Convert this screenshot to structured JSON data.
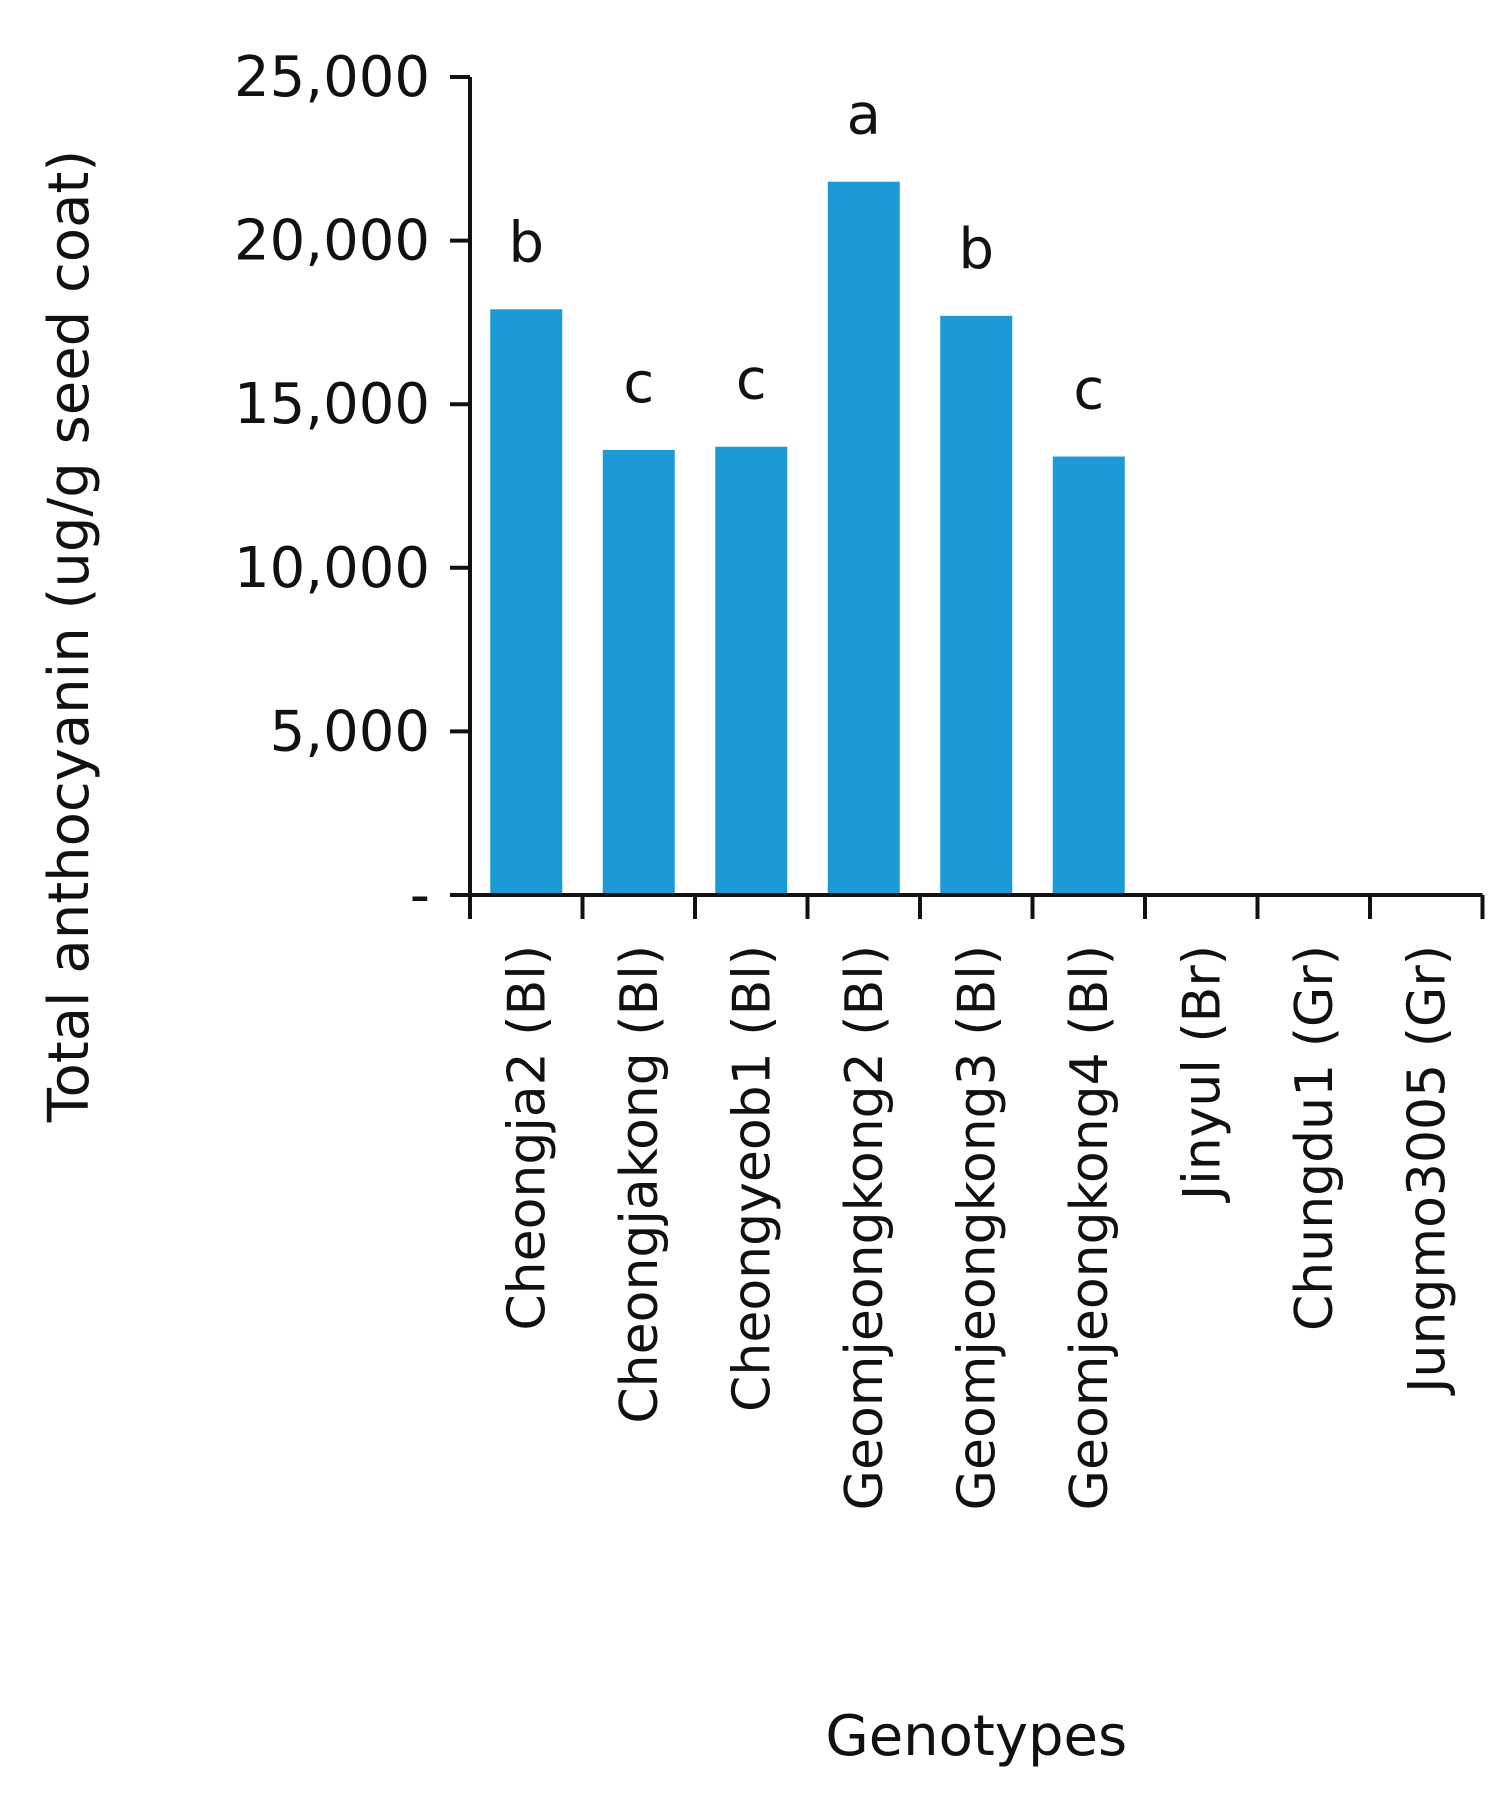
{
  "chart_data": {
    "type": "bar",
    "title": "",
    "xlabel": "Genotypes",
    "ylabel": "Total anthocyanin (ug/g seed coat)",
    "ylim": [
      0,
      25000
    ],
    "y_ticks": [
      0,
      5000,
      10000,
      15000,
      20000,
      25000
    ],
    "y_tick_labels": [
      "-",
      "5,000",
      "10,000",
      "15,000",
      "20,000",
      "25,000"
    ],
    "categories": [
      "Cheongja2 (Bl)",
      "Cheongjakong (Bl)",
      "Cheongyeob1 (Bl)",
      "Geomjeongkong2 (Bl)",
      "Geomjeongkong3 (Bl)",
      "Geomjeongkong4 (Bl)",
      "Jinyul (Br)",
      "Chungdu1 (Gr)",
      "Jungmo3005 (Gr)"
    ],
    "values": [
      17900,
      13600,
      13700,
      21800,
      17700,
      13400,
      0,
      0,
      0
    ],
    "significance_letters": [
      "b",
      "c",
      "c",
      "a",
      "b",
      "c",
      "",
      "",
      ""
    ],
    "bar_color": "#1a9ad7",
    "grid": false,
    "legend": "none"
  }
}
